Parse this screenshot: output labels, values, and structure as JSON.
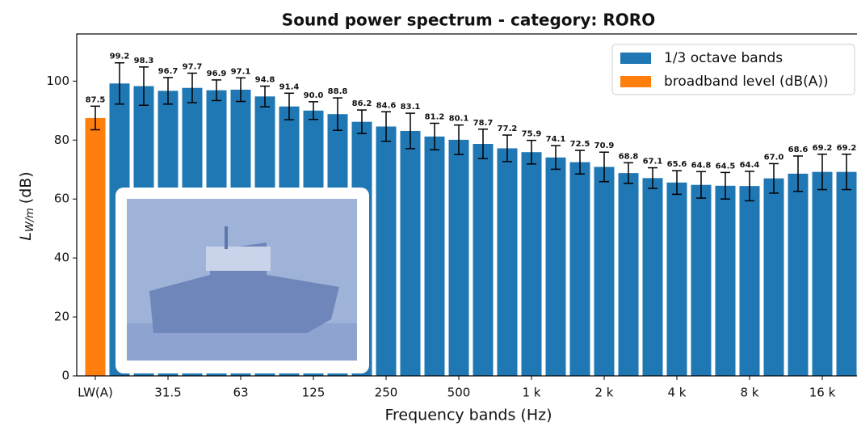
{
  "chart_data": {
    "type": "bar",
    "title": "Sound power spectrum - category: RORO",
    "xlabel": "Frequency bands (Hz)",
    "ylabel": {
      "symbol": "L",
      "subscript": "W/m",
      "unit": "(dB)"
    },
    "categories": [
      "LW(A)",
      null,
      null,
      "31.5",
      null,
      null,
      "63",
      null,
      null,
      "125",
      null,
      null,
      "250",
      null,
      null,
      "500",
      null,
      null,
      "1 k",
      null,
      null,
      "2 k",
      null,
      null,
      "4 k",
      null,
      null,
      "8 k",
      null,
      null,
      "16 k",
      null
    ],
    "series": [
      {
        "name": "1/3 octave bands",
        "color": "#1f77b4",
        "values": [
          null,
          99.2,
          98.3,
          96.7,
          97.7,
          96.9,
          97.1,
          94.8,
          91.4,
          90.0,
          88.8,
          86.2,
          84.6,
          83.1,
          81.2,
          80.1,
          78.7,
          77.2,
          75.9,
          74.1,
          72.5,
          70.9,
          68.8,
          67.1,
          65.6,
          64.8,
          64.5,
          64.4,
          67.0,
          68.6,
          69.2,
          69.2
        ],
        "value_labels": [
          null,
          "99.2",
          "98.3",
          "96.7",
          "97.7",
          "96.9",
          "97.1",
          "94.8",
          "91.4",
          "90.0",
          "88.8",
          "86.2",
          "84.6",
          "83.1",
          "81.2",
          "80.1",
          "78.7",
          "77.2",
          "75.9",
          "74.1",
          "72.5",
          "70.9",
          "68.8",
          "67.1",
          "65.6",
          "64.8",
          "64.5",
          "64.4",
          "67.0",
          "68.6",
          "69.2",
          "69.2"
        ],
        "errors": [
          null,
          7,
          6.5,
          4.5,
          5,
          3.5,
          4,
          3.5,
          4.5,
          3,
          5.5,
          4,
          5,
          6,
          4.5,
          5,
          5,
          4.5,
          4,
          4,
          4,
          5,
          3.5,
          3.5,
          4,
          4.5,
          4.5,
          5,
          5,
          6,
          6,
          6
        ]
      },
      {
        "name": "broadband level (dB(A))",
        "color": "#ff7f0e",
        "values": [
          87.5,
          null,
          null,
          null,
          null,
          null,
          null,
          null,
          null,
          null,
          null,
          null,
          null,
          null,
          null,
          null,
          null,
          null,
          null,
          null,
          null,
          null,
          null,
          null,
          null,
          null,
          null,
          null,
          null,
          null,
          null,
          null
        ],
        "value_labels": [
          "87.5",
          null,
          null,
          null,
          null,
          null,
          null,
          null,
          null,
          null,
          null,
          null,
          null,
          null,
          null,
          null,
          null,
          null,
          null,
          null,
          null,
          null,
          null,
          null,
          null,
          null,
          null,
          null,
          null,
          null,
          null,
          null
        ],
        "errors": [
          4,
          null,
          null,
          null,
          null,
          null,
          null,
          null,
          null,
          null,
          null,
          null,
          null,
          null,
          null,
          null,
          null,
          null,
          null,
          null,
          null,
          null,
          null,
          null,
          null,
          null,
          null,
          null,
          null,
          null,
          null,
          null
        ]
      }
    ],
    "ylim": [
      0,
      116
    ],
    "yticks": [
      0,
      20,
      40,
      60,
      80,
      100
    ],
    "grid": false,
    "legend": "upper right"
  }
}
